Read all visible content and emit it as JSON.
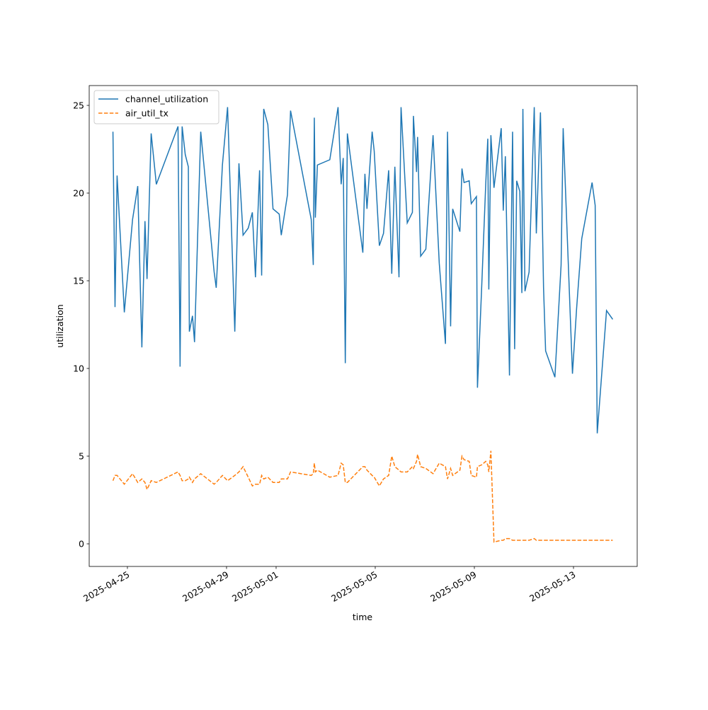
{
  "chart_data": {
    "type": "line",
    "xlabel": "time",
    "ylabel": "utilization",
    "x": [
      "2025-04-24 10:00",
      "2025-04-24 12:00",
      "2025-04-24 14:00",
      "2025-04-24 21:00",
      "2025-04-25 05:00",
      "2025-04-25 10:00",
      "2025-04-25 14:00",
      "2025-04-25 17:00",
      "2025-04-25 19:00",
      "2025-04-25 23:00",
      "2025-04-26 04:00",
      "2025-04-27 01:00",
      "2025-04-27 03:00",
      "2025-04-27 05:00",
      "2025-04-27 08:00",
      "2025-04-27 11:00",
      "2025-04-27 12:00",
      "2025-04-27 15:00",
      "2025-04-27 17:00",
      "2025-04-27 23:00",
      "2025-04-28 12:00",
      "2025-04-28 14:00",
      "2025-04-28 20:00",
      "2025-04-29 01:00",
      "2025-04-29 08:00",
      "2025-04-29 12:00",
      "2025-04-29 16:00",
      "2025-04-29 21:00",
      "2025-04-30 01:00",
      "2025-04-30 04:00",
      "2025-04-30 08:00",
      "2025-04-30 10:00",
      "2025-04-30 12:00",
      "2025-04-30 16:00",
      "2025-04-30 21:00",
      "2025-05-01 03:00",
      "2025-05-01 05:00",
      "2025-05-01 11:00",
      "2025-05-01 14:00",
      "2025-05-02 10:00",
      "2025-05-02 12:00",
      "2025-05-02 13:00",
      "2025-05-02 14:00",
      "2025-05-02 16:00",
      "2025-05-03 04:00",
      "2025-05-03 12:00",
      "2025-05-03 15:00",
      "2025-05-03 17:00",
      "2025-05-03 19:00",
      "2025-05-03 21:00",
      "2025-05-04 12:00",
      "2025-05-04 14:00",
      "2025-05-04 16:00",
      "2025-05-04 21:00",
      "2025-05-04 23:00",
      "2025-05-05 04:00",
      "2025-05-05 08:00",
      "2025-05-05 13:00",
      "2025-05-05 16:00",
      "2025-05-05 19:00",
      "2025-05-05 23:00",
      "2025-05-06 01:00",
      "2025-05-06 07:00",
      "2025-05-06 12:00",
      "2025-05-06 13:00",
      "2025-05-06 16:00",
      "2025-05-06 17:00",
      "2025-05-06 20:00",
      "2025-05-07 01:00",
      "2025-05-07 08:00",
      "2025-05-07 14:00",
      "2025-05-07 20:00",
      "2025-05-07 22:00",
      "2025-05-08 01:00",
      "2025-05-08 03:00",
      "2025-05-08 10:00",
      "2025-05-08 12:00",
      "2025-05-08 14:00",
      "2025-05-08 19:00",
      "2025-05-08 21:00",
      "2025-05-09 02:00",
      "2025-05-09 03:00",
      "2025-05-09 07:00",
      "2025-05-09 11:00",
      "2025-05-09 13:00",
      "2025-05-09 14:00",
      "2025-05-09 16:00",
      "2025-05-09 19:00",
      "2025-05-10 02:00",
      "2025-05-10 04:00",
      "2025-05-10 06:00",
      "2025-05-10 10:00",
      "2025-05-10 13:00",
      "2025-05-10 15:00",
      "2025-05-10 17:00",
      "2025-05-10 20:00",
      "2025-05-10 22:00",
      "2025-05-10 23:00",
      "2025-05-11 01:00",
      "2025-05-11 05:00",
      "2025-05-11 10:00",
      "2025-05-11 12:00",
      "2025-05-11 16:00",
      "2025-05-11 19:00",
      "2025-05-11 21:00",
      "2025-05-12 06:00",
      "2025-05-12 12:00",
      "2025-05-12 14:00",
      "2025-05-12 23:00",
      "2025-05-13 03:00",
      "2025-05-13 08:00",
      "2025-05-13 18:00",
      "2025-05-13 21:00",
      "2025-05-13 23:00",
      "2025-05-14 08:00",
      "2025-05-14 14:00"
    ],
    "series": [
      {
        "name": "channel_utilization",
        "color": "#1f77b4",
        "dash": "solid",
        "values": [
          23.5,
          13.5,
          21,
          13.2,
          18.5,
          20.4,
          11.2,
          18.4,
          15.1,
          23.4,
          20.5,
          23.8,
          10.1,
          23.8,
          22.2,
          21.5,
          12.1,
          13,
          11.5,
          23.5,
          15.5,
          14.6,
          21.6,
          24.9,
          12.1,
          21.7,
          17.6,
          18,
          18.9,
          15.2,
          21.3,
          15.3,
          24.8,
          23.9,
          19.1,
          18.8,
          17.6,
          19.9,
          24.7,
          18.5,
          15.9,
          24.3,
          18.6,
          21.6,
          21.9,
          24.9,
          20.5,
          22,
          10.3,
          23.4,
          16.6,
          21.1,
          19.1,
          23.5,
          22.4,
          17,
          17.7,
          21.3,
          15.4,
          21.5,
          15.2,
          24.9,
          18.3,
          18.9,
          24.4,
          21.2,
          23.2,
          16.4,
          16.8,
          23.3,
          16,
          11.4,
          23.5,
          12.4,
          19.1,
          17.8,
          21.4,
          20.6,
          20.7,
          19.4,
          19.8,
          8.9,
          14.5,
          20.5,
          23.1,
          14.5,
          23.3,
          20.3,
          23.7,
          19,
          22.1,
          9.6,
          23.5,
          11.1,
          20.7,
          20.1,
          14.3,
          24.8,
          14.4,
          15.5,
          24.9,
          17.7,
          24.6,
          14.6,
          11,
          9.5,
          15.9,
          23.7,
          9.7,
          13.4,
          17.4,
          20.6,
          19.3,
          6.3,
          13.3,
          12.8
        ]
      },
      {
        "name": "air_util_tx",
        "color": "#ff7f0e",
        "dash": "dashed",
        "values": [
          3.6,
          3.9,
          3.9,
          3.4,
          4.0,
          3.5,
          3.7,
          3.5,
          3.1,
          3.6,
          3.5,
          4.1,
          3.9,
          3.6,
          3.6,
          3.7,
          3.8,
          3.5,
          3.7,
          4.0,
          3.4,
          3.5,
          3.9,
          3.6,
          3.9,
          4.1,
          4.4,
          3.8,
          3.3,
          3.4,
          3.4,
          3.9,
          3.7,
          3.8,
          3.5,
          3.5,
          3.7,
          3.7,
          4.1,
          3.9,
          4.0,
          4.6,
          4.1,
          4.2,
          3.8,
          3.9,
          4.6,
          4.5,
          3.5,
          3.5,
          4.4,
          4.4,
          4.2,
          3.9,
          3.8,
          3.3,
          3.7,
          3.9,
          5.0,
          4.4,
          4.2,
          4.1,
          4.1,
          4.4,
          4.3,
          4.7,
          5.1,
          4.4,
          4.3,
          4.0,
          4.6,
          4.4,
          3.7,
          4.3,
          3.9,
          4.2,
          5.0,
          4.8,
          4.7,
          3.9,
          3.8,
          4.4,
          4.5,
          4.7,
          4.5,
          4.1,
          5.3,
          0.1,
          0.2,
          0.2,
          0.3,
          0.3,
          0.2,
          0.2,
          0.2,
          0.2,
          0.2,
          0.2,
          0.2,
          0.2,
          0.3,
          0.2,
          0.2,
          0.2,
          0.2,
          0.2,
          0.2,
          0.2,
          0.2,
          0.2,
          0.2,
          0.2,
          0.2,
          0.2,
          0.2,
          0.2
        ]
      }
    ],
    "xlim": [
      "2025-04-23 11:00",
      "2025-05-15 13:42"
    ],
    "xticks": [
      "2025-04-25",
      "2025-04-29",
      "2025-05-01",
      "2025-05-05",
      "2025-05-09",
      "2025-05-13"
    ],
    "ylim": [
      -1.29,
      26.13
    ],
    "yticks": [
      0,
      5,
      10,
      15,
      20,
      25
    ],
    "legend": "upper left"
  }
}
